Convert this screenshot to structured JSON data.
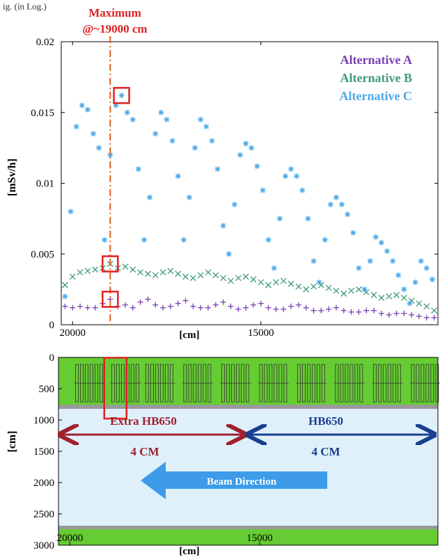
{
  "header": {
    "figure_caption": "ig. (in Log.)",
    "max_label_1": "Maximum",
    "max_label_2": "@~19000 cm"
  },
  "colors": {
    "alt_a": "#7a3fb8",
    "alt_b": "#3f9a7a",
    "alt_c": "#4aa8e8",
    "marker_line": "#e06020",
    "highlight": "#e02020",
    "max_text": "#e02020",
    "extra_text": "#a02030",
    "hb_text": "#1a3f8f",
    "green": "#66cc33",
    "blue_bg": "#dff0fb",
    "beam_arrow": "#3d9bea"
  },
  "chart_data": [
    {
      "type": "scatter",
      "ylabel": "[mSv/h]",
      "xlabel": "[cm]",
      "xlim": [
        20300,
        10300
      ],
      "ylim": [
        0,
        0.02
      ],
      "x_ticks": [
        20000,
        15000
      ],
      "y_ticks": [
        "0",
        "0.005",
        "0.01",
        "0.015",
        "0.02"
      ],
      "y_tick_values": [
        0,
        0.005,
        0.01,
        0.015,
        0.02
      ],
      "legend": [
        "Alternative A",
        "Alternative B",
        "Alternative C"
      ],
      "legend_position": "top-right",
      "vertical_marker_x": 19000,
      "series": [
        {
          "name": "Alternative A",
          "marker": "+",
          "x": [
            20200,
            20000,
            19800,
            19600,
            19400,
            19200,
            19000,
            18800,
            18600,
            18400,
            18200,
            18000,
            17800,
            17600,
            17400,
            17200,
            17000,
            16800,
            16600,
            16400,
            16200,
            16000,
            15800,
            15600,
            15400,
            15200,
            15000,
            14800,
            14600,
            14400,
            14200,
            14000,
            13800,
            13600,
            13400,
            13200,
            13000,
            12800,
            12600,
            12400,
            12200,
            12000,
            11800,
            11600,
            11400,
            11200,
            11000,
            10800,
            10600,
            10400
          ],
          "values": [
            0.0013,
            0.0012,
            0.0013,
            0.0012,
            0.0012,
            0.0015,
            0.0018,
            0.0013,
            0.0014,
            0.0012,
            0.0016,
            0.0018,
            0.0014,
            0.0012,
            0.0013,
            0.0015,
            0.0017,
            0.0013,
            0.0012,
            0.0012,
            0.0014,
            0.0016,
            0.0013,
            0.0011,
            0.0012,
            0.0014,
            0.0015,
            0.0012,
            0.0011,
            0.0011,
            0.0013,
            0.0014,
            0.0012,
            0.001,
            0.001,
            0.0011,
            0.0012,
            0.001,
            0.0009,
            0.0009,
            0.001,
            0.001,
            0.0008,
            0.0007,
            0.0008,
            0.0008,
            0.0007,
            0.0006,
            0.0005,
            0.0005
          ]
        },
        {
          "name": "Alternative B",
          "marker": "x",
          "x": [
            20200,
            20000,
            19800,
            19600,
            19400,
            19200,
            19000,
            18800,
            18600,
            18400,
            18200,
            18000,
            17800,
            17600,
            17400,
            17200,
            17000,
            16800,
            16600,
            16400,
            16200,
            16000,
            15800,
            15600,
            15400,
            15200,
            15000,
            14800,
            14600,
            14400,
            14200,
            14000,
            13800,
            13600,
            13400,
            13200,
            13000,
            12800,
            12600,
            12400,
            12200,
            12000,
            11800,
            11600,
            11400,
            11200,
            11000,
            10800,
            10600,
            10400
          ],
          "values": [
            0.0028,
            0.0034,
            0.0037,
            0.0038,
            0.0039,
            0.004,
            0.0043,
            0.004,
            0.0041,
            0.0039,
            0.0037,
            0.0036,
            0.0035,
            0.0037,
            0.0038,
            0.0036,
            0.0034,
            0.0033,
            0.0035,
            0.0037,
            0.0035,
            0.0033,
            0.0031,
            0.0033,
            0.0034,
            0.0032,
            0.003,
            0.0028,
            0.003,
            0.0031,
            0.0029,
            0.0027,
            0.0025,
            0.0027,
            0.0028,
            0.0026,
            0.0024,
            0.0022,
            0.0024,
            0.0025,
            0.0023,
            0.0021,
            0.0019,
            0.002,
            0.0021,
            0.0019,
            0.0017,
            0.0015,
            0.0013,
            0.001
          ]
        },
        {
          "name": "Alternative C",
          "marker": "*",
          "x": [
            20200,
            20050,
            19900,
            19750,
            19600,
            19450,
            19300,
            19150,
            19000,
            18850,
            18700,
            18550,
            18400,
            18250,
            18100,
            17950,
            17800,
            17650,
            17500,
            17350,
            17200,
            17050,
            16900,
            16750,
            16600,
            16450,
            16300,
            16150,
            16000,
            15850,
            15700,
            15550,
            15400,
            15250,
            15100,
            14950,
            14800,
            14650,
            14500,
            14350,
            14200,
            14050,
            13900,
            13750,
            13600,
            13450,
            13300,
            13150,
            13000,
            12850,
            12700,
            12550,
            12400,
            12250,
            12100,
            11950,
            11800,
            11650,
            11500,
            11350,
            11200,
            11050,
            10900,
            10750,
            10600,
            10450
          ],
          "values": [
            0.002,
            0.008,
            0.014,
            0.0155,
            0.0152,
            0.0135,
            0.0125,
            0.006,
            0.012,
            0.0155,
            0.0162,
            0.015,
            0.0145,
            0.011,
            0.006,
            0.009,
            0.0135,
            0.015,
            0.0145,
            0.013,
            0.0105,
            0.006,
            0.009,
            0.0125,
            0.0145,
            0.014,
            0.013,
            0.011,
            0.007,
            0.005,
            0.0085,
            0.012,
            0.0128,
            0.0125,
            0.0112,
            0.0095,
            0.006,
            0.004,
            0.0075,
            0.0105,
            0.011,
            0.0105,
            0.0095,
            0.0075,
            0.0045,
            0.003,
            0.006,
            0.0085,
            0.009,
            0.0085,
            0.0078,
            0.0065,
            0.004,
            0.0025,
            0.0045,
            0.0062,
            0.0058,
            0.0052,
            0.0045,
            0.0035,
            0.0025,
            0.0015,
            0.003,
            0.0045,
            0.004,
            0.0032
          ]
        }
      ],
      "highlight_boxes": [
        {
          "x": 18700,
          "y": 0.0162
        },
        {
          "x": 19000,
          "y": 0.0043
        },
        {
          "x": 19000,
          "y": 0.0018
        }
      ]
    },
    {
      "type": "diagram",
      "ylabel": "[cm]",
      "xlabel": "[cm]",
      "xlim": [
        20300,
        10300
      ],
      "ylim": [
        3000,
        0
      ],
      "x_ticks": [
        20000,
        15000
      ],
      "y_ticks": [
        "0",
        "500",
        "1000",
        "1500",
        "2000",
        "2500",
        "3000"
      ],
      "y_tick_values": [
        0,
        500,
        1000,
        1500,
        2000,
        2500,
        3000
      ],
      "labels": {
        "extra": "Extra HB650",
        "hb": "HB650",
        "cm_left": "4 CM",
        "cm_right": "4 CM",
        "beam": "Beam Direction"
      },
      "regions": {
        "upper_green_y": [
          0,
          900
        ],
        "lower_green_y": [
          2700,
          3000
        ],
        "boundary_x": 14300
      },
      "cavity_groups_x": [
        19850,
        18900,
        18000,
        17000,
        16000,
        15000,
        14000,
        13000,
        12000,
        11000
      ],
      "highlight_box": {
        "x": 18800,
        "y": [
          50,
          1000
        ]
      }
    }
  ]
}
